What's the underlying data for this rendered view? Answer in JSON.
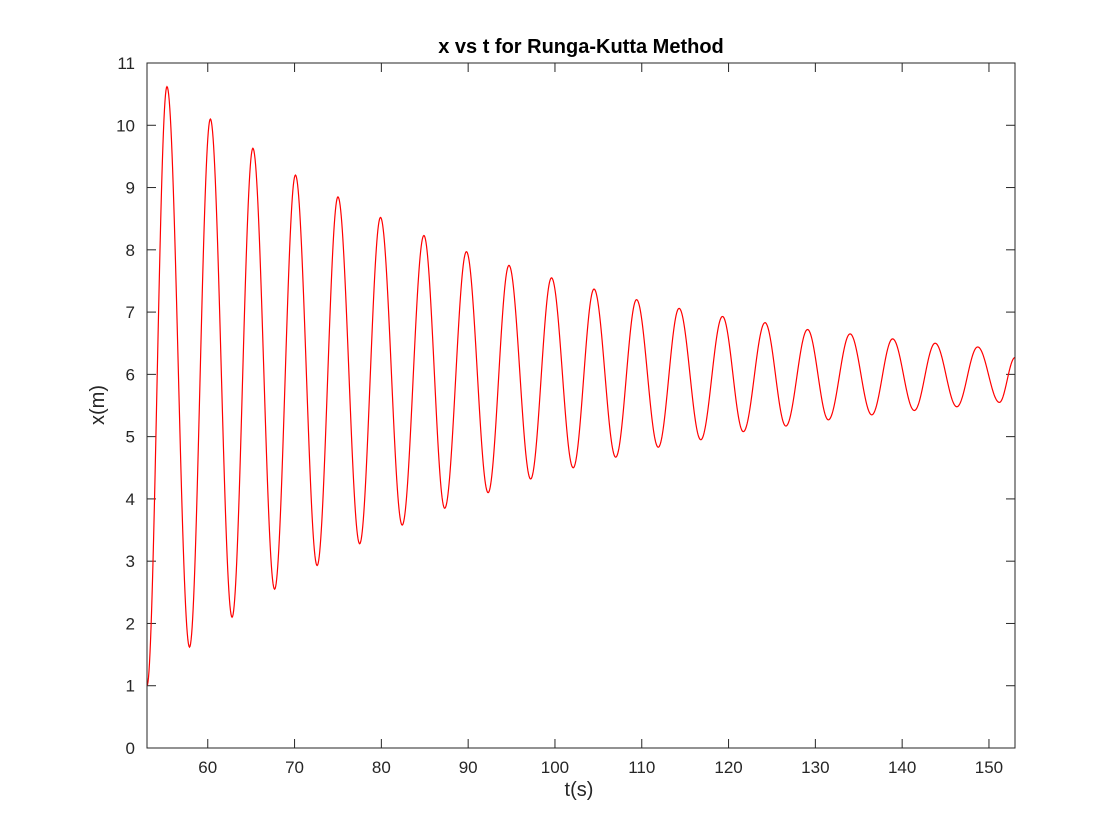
{
  "chart_data": {
    "type": "line",
    "title": "x vs t for Runga-Kutta Method",
    "xlabel": "t(s)",
    "ylabel": "x(m)",
    "xlim": [
      53,
      153
    ],
    "ylim": [
      0,
      11
    ],
    "xticks": [
      "60",
      "70",
      "80",
      "90",
      "100",
      "110",
      "120",
      "130",
      "140",
      "150"
    ],
    "yticks": [
      "0",
      "1",
      "2",
      "3",
      "4",
      "5",
      "6",
      "7",
      "8",
      "9",
      "10",
      "11"
    ],
    "grid": false,
    "line_color": "#ff0000",
    "series": [
      {
        "x": [
          53.0,
          55.3,
          57.9,
          60.3,
          62.8,
          65.2,
          67.7,
          70.1,
          72.6,
          75.0,
          77.5,
          79.9,
          82.4,
          84.9,
          87.3,
          89.8,
          92.3,
          94.7,
          97.2,
          99.6,
          102.1,
          104.5,
          107.0,
          109.4,
          111.9,
          114.3,
          116.8,
          119.3,
          121.7,
          124.2,
          126.6,
          129.1,
          131.5,
          134.0,
          136.5,
          138.9,
          141.4,
          143.8,
          146.3,
          148.7,
          151.2,
          153.0
        ],
        "values": [
          1.0,
          10.62,
          1.62,
          10.1,
          2.1,
          9.63,
          2.55,
          9.2,
          2.93,
          8.85,
          3.28,
          8.52,
          3.58,
          8.23,
          3.85,
          7.97,
          4.1,
          7.75,
          4.32,
          7.55,
          4.5,
          7.37,
          4.67,
          7.2,
          4.83,
          7.06,
          4.95,
          6.93,
          5.08,
          6.83,
          5.17,
          6.72,
          5.27,
          6.65,
          5.35,
          6.57,
          5.42,
          6.5,
          5.48,
          6.44,
          5.55,
          6.27
        ]
      }
    ]
  }
}
